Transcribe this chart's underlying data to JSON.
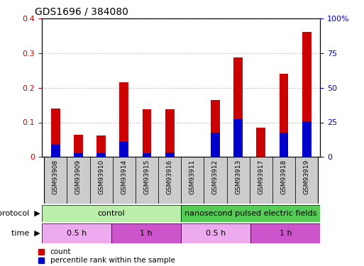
{
  "title": "GDS1696 / 384080",
  "samples": [
    "GSM93908",
    "GSM93909",
    "GSM93910",
    "GSM93914",
    "GSM93915",
    "GSM93916",
    "GSM93911",
    "GSM93912",
    "GSM93913",
    "GSM93917",
    "GSM93918",
    "GSM93919"
  ],
  "count_values": [
    0.14,
    0.065,
    0.062,
    0.215,
    0.137,
    0.137,
    0.0,
    0.165,
    0.288,
    0.085,
    0.24,
    0.362
  ],
  "percentile_values": [
    9.0,
    2.5,
    2.5,
    11.0,
    2.5,
    3.0,
    0.0,
    17.5,
    27.5,
    0.0,
    17.5,
    26.0
  ],
  "ylim_left": [
    0,
    0.4
  ],
  "ylim_right": [
    0,
    100
  ],
  "yticks_left": [
    0,
    0.1,
    0.2,
    0.3,
    0.4
  ],
  "ytick_labels_left": [
    "0",
    "0.1",
    "0.2",
    "0.3",
    "0.4"
  ],
  "yticks_right": [
    0,
    25,
    50,
    75,
    100
  ],
  "ytick_labels_right": [
    "0",
    "25",
    "50",
    "75",
    "100%"
  ],
  "bar_color_count": "#cc0000",
  "bar_color_percentile": "#0000cc",
  "grid_color": "#aaaaaa",
  "protocol_row": [
    {
      "label": "control",
      "start": 0,
      "end": 6,
      "color": "#bbeeaa"
    },
    {
      "label": "nanosecond pulsed electric fields",
      "start": 6,
      "end": 12,
      "color": "#55cc55"
    }
  ],
  "time_row": [
    {
      "label": "0.5 h",
      "start": 0,
      "end": 3,
      "color": "#eeaaee"
    },
    {
      "label": "1 h",
      "start": 3,
      "end": 6,
      "color": "#cc55cc"
    },
    {
      "label": "0.5 h",
      "start": 6,
      "end": 9,
      "color": "#eeaaee"
    },
    {
      "label": "1 h",
      "start": 9,
      "end": 12,
      "color": "#cc55cc"
    }
  ],
  "legend_count_label": "count",
  "legend_percentile_label": "percentile rank within the sample",
  "bar_color_red": "#cc0000",
  "bar_color_blue": "#0000cc",
  "tick_area_color": "#cccccc",
  "bg_color": "#ffffff",
  "label_protocol": "protocol",
  "label_time": "time"
}
